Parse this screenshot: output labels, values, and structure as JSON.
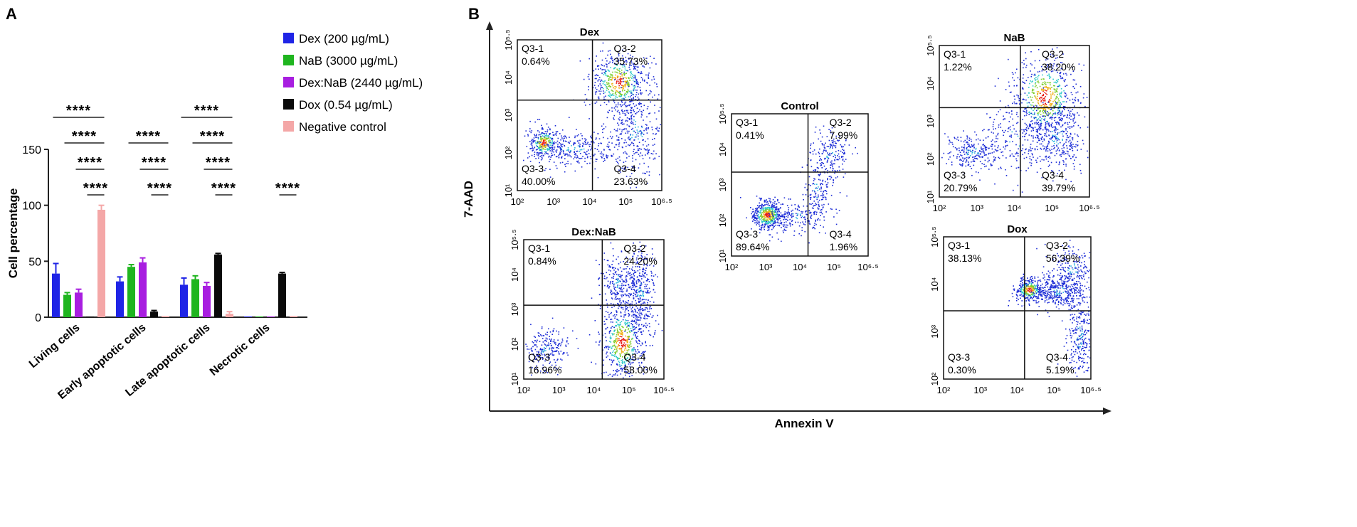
{
  "panel_a": {
    "label": "A",
    "chart_data": {
      "type": "bar",
      "title": "",
      "xlabel": "",
      "ylabel": "Cell percentage",
      "ylim": [
        0,
        150
      ],
      "yticks": [
        "0",
        "50",
        "100",
        "150"
      ],
      "categories": [
        "Living cells",
        "Early apoptotic cells",
        "Late apoptotic cells",
        "Necrotic cells"
      ],
      "series": [
        {
          "name": "Dex (200 µg/mL)",
          "color": "#1f24e6",
          "values": [
            39,
            32,
            29,
            0.5
          ],
          "errors": [
            9,
            4,
            6,
            0.3
          ]
        },
        {
          "name": "NaB (3000 µg/mL)",
          "color": "#1fb51f",
          "values": [
            20,
            45,
            34,
            0.5
          ],
          "errors": [
            2,
            2,
            3,
            0.3
          ]
        },
        {
          "name": "Dex:NaB (2440 µg/mL)",
          "color": "#a81ee0",
          "values": [
            22,
            49,
            28,
            0.5
          ],
          "errors": [
            3,
            4,
            3,
            0.3
          ]
        },
        {
          "name": "Dox (0.54 µg/mL)",
          "color": "#0a0a0a",
          "values": [
            0.5,
            5,
            56,
            39
          ],
          "errors": [
            0.3,
            1,
            1,
            1
          ]
        },
        {
          "name": "Negative control",
          "color": "#f4a7a7",
          "values": [
            96,
            1,
            3,
            1
          ],
          "errors": [
            4,
            0.5,
            2,
            0.5
          ]
        }
      ],
      "significance": {
        "label": "****",
        "rows": [
          [
            1,
            0,
            1,
            0
          ],
          [
            1,
            1,
            1,
            0
          ],
          [
            1,
            1,
            1,
            0
          ],
          [
            1,
            1,
            1,
            1
          ]
        ]
      },
      "legend_position": "top-right"
    }
  },
  "panel_b": {
    "label": "B",
    "xlabel": "Annexin V",
    "ylabel": "7-AAD",
    "x_ticks": [
      "10²",
      "10³",
      "10⁴",
      "10⁵",
      "10⁶·⁵"
    ],
    "plots": [
      {
        "title": "Dex",
        "quadrants": {
          "q1": {
            "name": "Q3-1",
            "value": "0.64%"
          },
          "q2": {
            "name": "Q3-2",
            "value": "35.73%"
          },
          "q3": {
            "name": "Q3-3",
            "value": "40.00%"
          },
          "q4": {
            "name": "Q3-4",
            "value": "23.63%"
          }
        },
        "y_ticks": [
          "10¹",
          "10²",
          "10³",
          "10⁴",
          "10⁵·⁵"
        ]
      },
      {
        "title": "Dex:NaB",
        "quadrants": {
          "q1": {
            "name": "Q3-1",
            "value": "0.84%"
          },
          "q2": {
            "name": "Q3-2",
            "value": "24.20%"
          },
          "q3": {
            "name": "Q3-3",
            "value": "16.96%"
          },
          "q4": {
            "name": "Q3-4",
            "value": "58.00%"
          }
        },
        "y_ticks": [
          "10¹",
          "10²",
          "10³",
          "10⁴",
          "10⁵·⁵"
        ]
      },
      {
        "title": "Control",
        "quadrants": {
          "q1": {
            "name": "Q3-1",
            "value": "0.41%"
          },
          "q2": {
            "name": "Q3-2",
            "value": "7.99%"
          },
          "q3": {
            "name": "Q3-3",
            "value": "89.64%"
          },
          "q4": {
            "name": "Q3-4",
            "value": "1.96%"
          }
        },
        "y_ticks": [
          "10¹",
          "10²",
          "10³",
          "10⁴",
          "10⁵·⁵"
        ]
      },
      {
        "title": "NaB",
        "quadrants": {
          "q1": {
            "name": "Q3-1",
            "value": "1.22%"
          },
          "q2": {
            "name": "Q3-2",
            "value": "38.20%"
          },
          "q3": {
            "name": "Q3-3",
            "value": "20.79%"
          },
          "q4": {
            "name": "Q3-4",
            "value": "39.79%"
          }
        },
        "y_ticks": [
          "10¹",
          "10²",
          "10³",
          "10⁴",
          "10⁵·⁵"
        ]
      },
      {
        "title": "Dox",
        "quadrants": {
          "q1": {
            "name": "Q3-1",
            "value": "38.13%"
          },
          "q2": {
            "name": "Q3-2",
            "value": "56.39%"
          },
          "q3": {
            "name": "Q3-3",
            "value": "0.30%"
          },
          "q4": {
            "name": "Q3-4",
            "value": "5.19%"
          }
        },
        "y_ticks": [
          "10²",
          "10³",
          "10⁴",
          "10⁵·⁵"
        ]
      }
    ]
  }
}
